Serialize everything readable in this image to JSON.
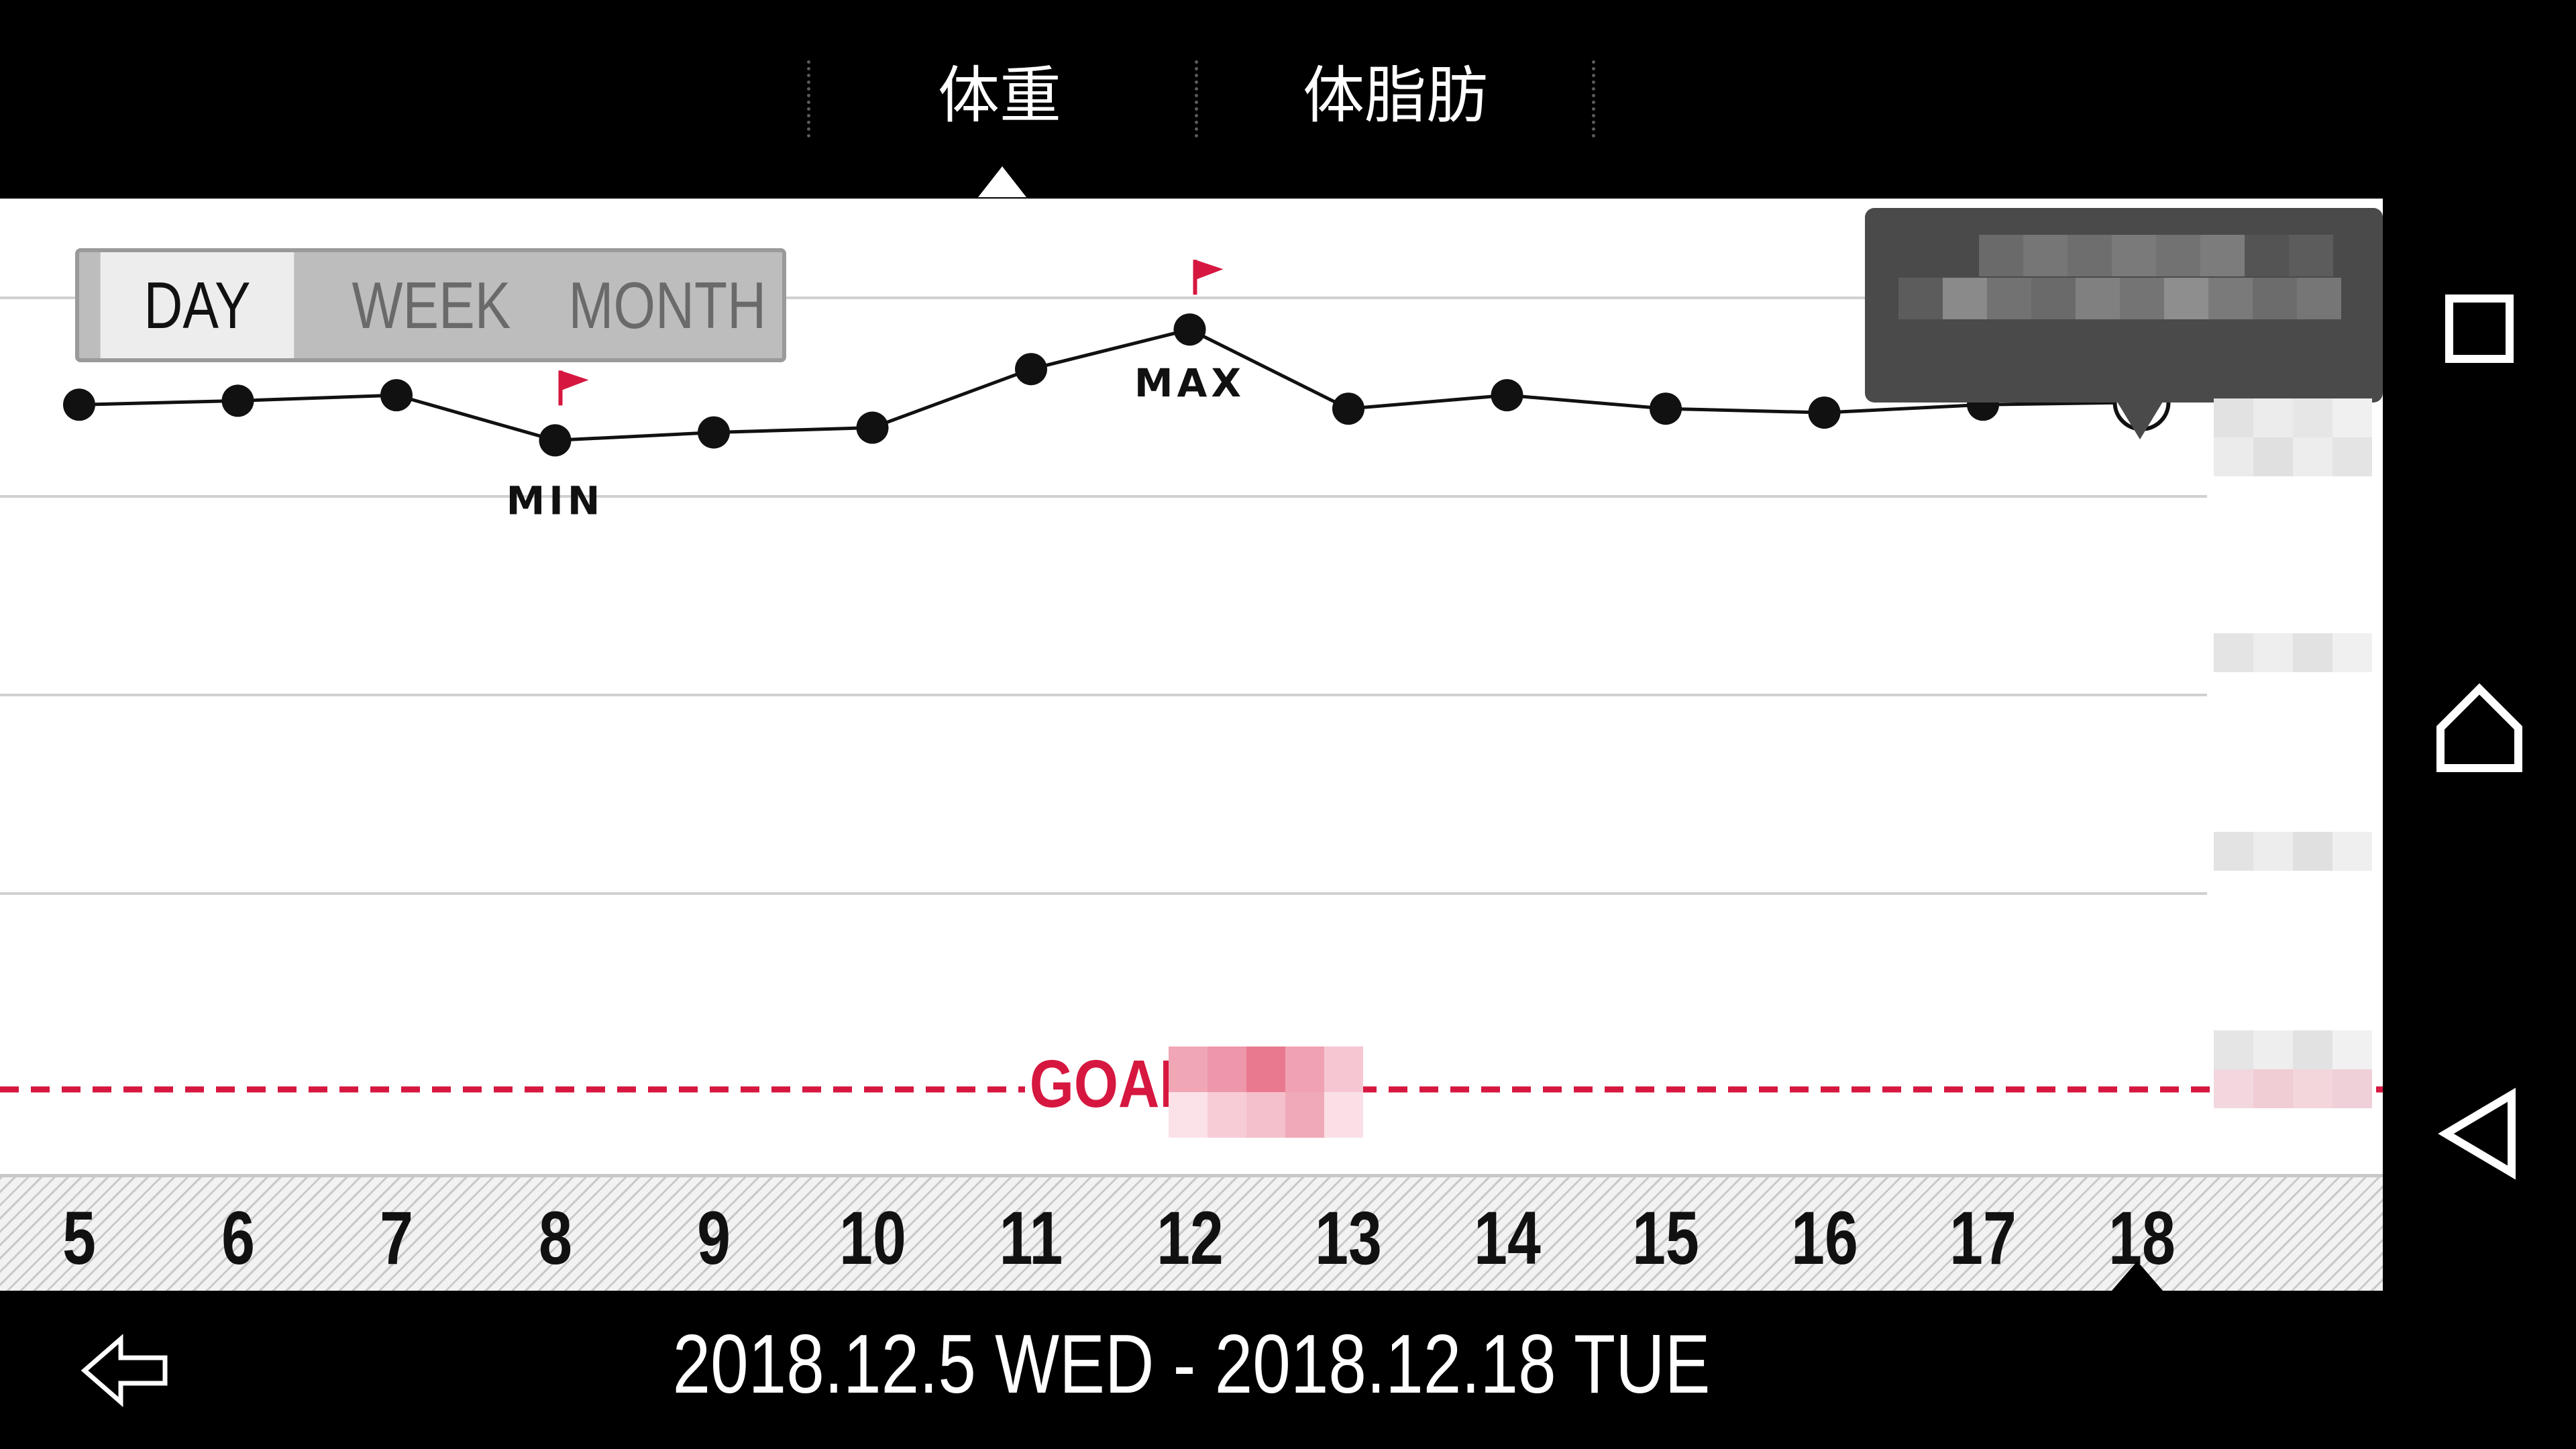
{
  "tabs": [
    {
      "label": "体重",
      "active": true
    },
    {
      "label": "体脂肪",
      "active": false
    }
  ],
  "range_toggle": {
    "options": [
      "DAY",
      "WEEK",
      "MONTH"
    ],
    "selected": "DAY"
  },
  "chart_data": {
    "type": "line",
    "x": [
      5,
      6,
      7,
      8,
      9,
      10,
      11,
      12,
      13,
      14,
      15,
      16,
      17,
      18
    ],
    "y_relative_level": [
      0.865,
      0.87,
      0.877,
      0.82,
      0.83,
      0.836,
      0.91,
      0.96,
      0.86,
      0.877,
      0.86,
      0.855,
      0.865,
      0.868
    ],
    "min_label": "MIN",
    "max_label": "MAX",
    "min_index": 3,
    "max_index": 7,
    "selected_index": 13,
    "goal_label": "GOAL",
    "colors": {
      "line": "#111111",
      "flag": "#d6173f",
      "goal": "#d6173f",
      "grid": "#d0d0d0"
    }
  },
  "date_range": "2018.12.5 WED - 2018.12.18 TUE",
  "icons": {
    "back": "back-arrow-icon",
    "recents": "recents-square-icon",
    "home": "home-icon",
    "nav_back": "nav-back-triangle-icon"
  }
}
